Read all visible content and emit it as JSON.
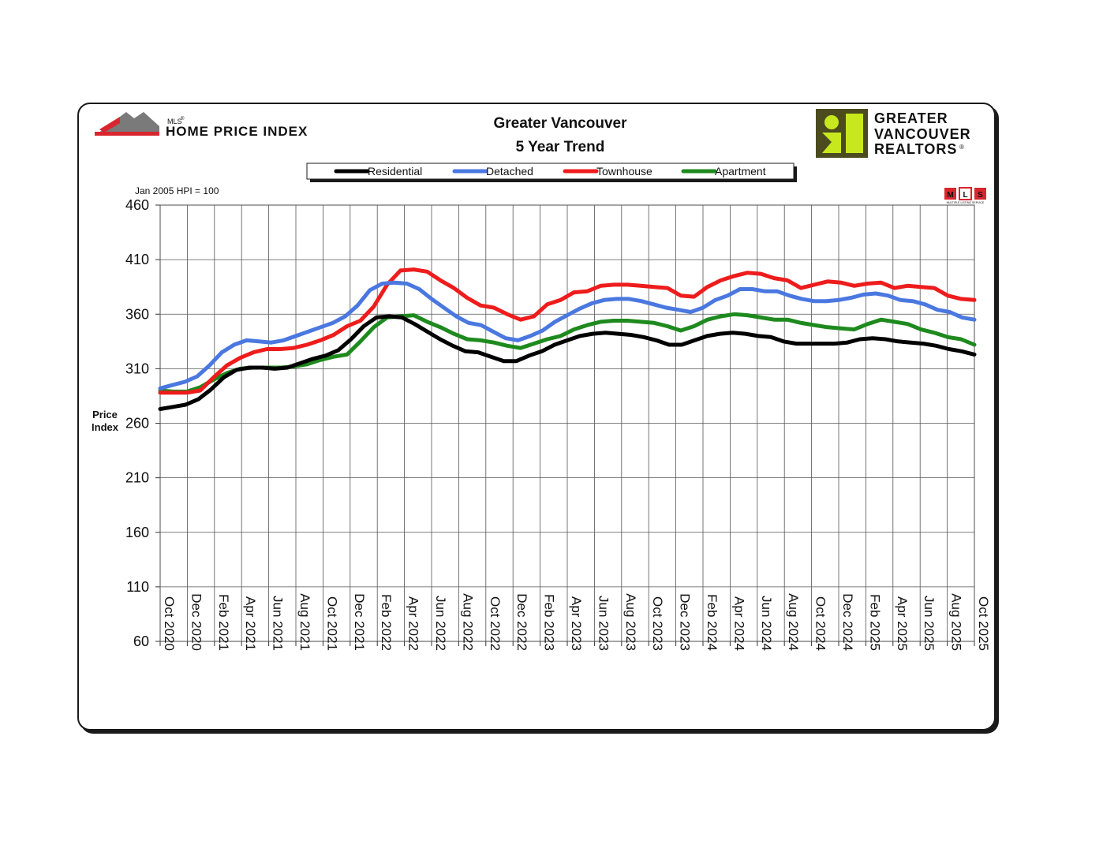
{
  "chart_data": {
    "type": "line",
    "title": "Greater Vancouver",
    "subtitle": "5 Year Trend",
    "note": "Jan 2005 HPI = 100",
    "ylabel_line1": "Price",
    "ylabel_line2": "Index",
    "ylim": [
      60,
      460
    ],
    "yticks": [
      60,
      110,
      160,
      210,
      260,
      310,
      360,
      410,
      460
    ],
    "grid": true,
    "legend_position": "top-center",
    "tick_labels": [
      "Oct 2020",
      "Dec 2020",
      "Feb 2021",
      "Apr 2021",
      "Jun 2021",
      "Aug 2021",
      "Oct 2021",
      "Dec 2021",
      "Feb 2022",
      "Apr 2022",
      "Jun 2022",
      "Aug 2022",
      "Oct 2022",
      "Dec 2022",
      "Feb 2023",
      "Apr 2023",
      "Jun 2023",
      "Aug 2023",
      "Oct 2023",
      "Dec 2023",
      "Feb 2024",
      "Apr 2024",
      "Jun 2024",
      "Aug 2024",
      "Oct 2024",
      "Dec 2024",
      "Feb 2025",
      "Apr 2025",
      "Jun 2025",
      "Aug 2025",
      "Oct 2025"
    ],
    "series": [
      {
        "name": "Residential",
        "color": "#000000",
        "values": [
          273,
          275,
          277,
          282,
          291,
          302,
          309,
          311,
          311,
          310,
          311,
          315,
          319,
          322,
          327,
          337,
          349,
          357,
          358,
          357,
          351,
          344,
          337,
          331,
          326,
          325,
          321,
          317,
          317,
          322,
          326,
          332,
          336,
          340,
          342,
          343,
          342,
          341,
          339,
          336,
          332,
          332,
          336,
          340,
          342,
          343,
          342,
          340,
          339,
          335,
          333,
          333,
          333,
          333,
          334,
          337,
          338,
          337,
          335,
          334,
          333,
          331,
          328,
          326,
          323
        ]
      },
      {
        "name": "Detached",
        "color": "#4a78e0",
        "values": [
          292,
          295,
          298,
          303,
          313,
          325,
          332,
          336,
          335,
          334,
          336,
          340,
          344,
          348,
          352,
          358,
          368,
          382,
          388,
          389,
          388,
          383,
          374,
          366,
          358,
          352,
          350,
          344,
          338,
          336,
          340,
          345,
          353,
          359,
          365,
          370,
          373,
          374,
          374,
          372,
          369,
          366,
          364,
          362,
          366,
          373,
          377,
          383,
          383,
          381,
          381,
          377,
          374,
          372,
          372,
          373,
          375,
          378,
          379,
          377,
          373,
          372,
          369,
          364,
          362,
          357,
          355
        ]
      },
      {
        "name": "Townhouse",
        "color": "#ee1c1c",
        "values": [
          288,
          288,
          288,
          290,
          302,
          313,
          320,
          325,
          328,
          328,
          329,
          332,
          336,
          341,
          349,
          354,
          367,
          387,
          400,
          401,
          399,
          391,
          384,
          375,
          368,
          366,
          360,
          355,
          358,
          369,
          373,
          380,
          381,
          386,
          387,
          387,
          386,
          385,
          384,
          377,
          376,
          385,
          391,
          395,
          398,
          397,
          393,
          391,
          384,
          387,
          390,
          389,
          386,
          388,
          389,
          384,
          386,
          385,
          384,
          377,
          374,
          373
        ]
      },
      {
        "name": "Apartment",
        "color": "#1e8a1e",
        "values": [
          290,
          289,
          289,
          293,
          300,
          306,
          310,
          311,
          311,
          311,
          312,
          314,
          318,
          321,
          323,
          335,
          348,
          357,
          358,
          359,
          353,
          348,
          342,
          337,
          336,
          334,
          331,
          329,
          333,
          337,
          340,
          346,
          350,
          353,
          354,
          354,
          353,
          352,
          349,
          345,
          349,
          355,
          358,
          360,
          359,
          357,
          355,
          355,
          352,
          350,
          348,
          347,
          346,
          351,
          355,
          353,
          351,
          346,
          343,
          339,
          337,
          332
        ]
      }
    ]
  },
  "header": {
    "logo_small": "MLS",
    "logo_reg": "®",
    "logo_main": "HOME PRICE INDEX"
  },
  "brand": {
    "line1": "GREATER",
    "line2": "VANCOUVER",
    "line3": "REALTORS",
    "reg": "®"
  },
  "mls_badge": {
    "letters": [
      "M",
      "L",
      "S"
    ],
    "caption": "MULTIPLE LISTING SERVICE"
  }
}
